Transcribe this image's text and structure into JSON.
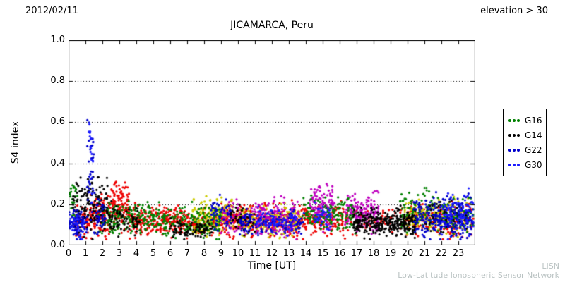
{
  "header": {
    "date": "2012/02/11",
    "elevation": "elevation > 30"
  },
  "watermark": {
    "acronym": "LISN",
    "full_name": "Low-Latitude Ionospheric Sensor Network"
  },
  "chart_data": {
    "type": "scatter",
    "title": "JICAMARCA, Peru",
    "xlabel": "Time [UT]",
    "ylabel": "S4 index",
    "xlim": [
      0,
      24
    ],
    "ylim": [
      0.0,
      1.0
    ],
    "xticks": [
      0,
      1,
      2,
      3,
      4,
      5,
      6,
      7,
      8,
      9,
      10,
      11,
      12,
      13,
      14,
      15,
      16,
      17,
      18,
      19,
      20,
      21,
      22,
      23
    ],
    "xtick_labels": [
      "0",
      "1",
      "2",
      "3",
      "4",
      "5",
      "6",
      "7",
      "8",
      "9",
      "10",
      "11",
      "12",
      "13",
      "14",
      "15",
      "16",
      "17",
      "18",
      "19",
      "20",
      "21",
      "22",
      "23"
    ],
    "yticks": [
      0.0,
      0.2,
      0.4,
      0.6,
      0.8,
      1.0
    ],
    "ytick_labels": [
      "0.0",
      "0.2",
      "0.4",
      "0.6",
      "0.8",
      "1.0"
    ],
    "grid_y": [
      0.2,
      0.4,
      0.6,
      0.8
    ],
    "grid_style": "dotted",
    "legend_position": "right-outside",
    "marker_radius": 1.6,
    "seed": 42,
    "legend": [
      {
        "label": "G16",
        "color": "#008000"
      },
      {
        "label": "G14",
        "color": "#000000"
      },
      {
        "label": "G22",
        "color": "#0000cc"
      },
      {
        "label": "G30",
        "color": "#1a1aff"
      }
    ],
    "band_format": [
      "t_start",
      "t_end",
      "n_points",
      "mean_s4",
      "spread_sd",
      "max_s4"
    ],
    "series": [
      {
        "name": "other-red",
        "color": "#ee0000",
        "bands": [
          [
            0.3,
            1.3,
            70,
            0.12,
            0.035,
            0.3
          ],
          [
            1.3,
            2.5,
            150,
            0.14,
            0.045,
            0.3
          ],
          [
            2.5,
            3.6,
            120,
            0.19,
            0.055,
            0.31
          ],
          [
            3.6,
            6.5,
            220,
            0.12,
            0.035,
            0.26
          ],
          [
            6.5,
            9.0,
            160,
            0.11,
            0.03,
            0.24
          ],
          [
            9.0,
            11.5,
            180,
            0.12,
            0.04,
            0.27
          ],
          [
            11.5,
            14.0,
            180,
            0.12,
            0.04,
            0.26
          ],
          [
            14.0,
            16.5,
            140,
            0.12,
            0.035,
            0.24
          ],
          [
            16.5,
            20.0,
            80,
            0.12,
            0.03,
            0.22
          ],
          [
            20.0,
            23.9,
            200,
            0.13,
            0.04,
            0.26
          ]
        ]
      },
      {
        "name": "other-yellow",
        "color": "#cccc00",
        "bands": [
          [
            7.3,
            9.7,
            180,
            0.14,
            0.04,
            0.24
          ],
          [
            10.0,
            13.7,
            200,
            0.12,
            0.035,
            0.22
          ],
          [
            19.8,
            23.6,
            170,
            0.14,
            0.04,
            0.24
          ]
        ]
      },
      {
        "name": "other-magenta",
        "color": "#bf00bf",
        "bands": [
          [
            9.0,
            10.5,
            60,
            0.13,
            0.04,
            0.27
          ],
          [
            10.8,
            13.6,
            170,
            0.13,
            0.045,
            0.27
          ],
          [
            14.2,
            15.7,
            130,
            0.19,
            0.05,
            0.3
          ],
          [
            16.3,
            18.3,
            170,
            0.16,
            0.045,
            0.27
          ]
        ]
      },
      {
        "name": "G16",
        "color": "#008000",
        "bands": [
          [
            0.05,
            0.6,
            25,
            0.22,
            0.04,
            0.3
          ],
          [
            1.8,
            5.0,
            180,
            0.13,
            0.04,
            0.26
          ],
          [
            5.0,
            9.0,
            180,
            0.12,
            0.035,
            0.24
          ],
          [
            13.8,
            17.0,
            140,
            0.15,
            0.04,
            0.25
          ],
          [
            19.5,
            21.5,
            80,
            0.17,
            0.05,
            0.28
          ],
          [
            21.5,
            23.9,
            80,
            0.14,
            0.04,
            0.24
          ]
        ]
      },
      {
        "name": "G14",
        "color": "#000000",
        "bands": [
          [
            0.2,
            0.9,
            40,
            0.2,
            0.06,
            0.33
          ],
          [
            0.9,
            2.3,
            110,
            0.2,
            0.07,
            0.39
          ],
          [
            2.3,
            4.2,
            70,
            0.12,
            0.04,
            0.24
          ],
          [
            6.0,
            8.5,
            90,
            0.075,
            0.02,
            0.14
          ],
          [
            9.5,
            11.0,
            50,
            0.12,
            0.03,
            0.2
          ],
          [
            16.8,
            20.5,
            320,
            0.11,
            0.03,
            0.2
          ],
          [
            21.0,
            23.5,
            70,
            0.15,
            0.05,
            0.28
          ]
        ]
      },
      {
        "name": "G22",
        "color": "#0000cc",
        "bands": [
          [
            0.0,
            1.1,
            70,
            0.11,
            0.035,
            0.22
          ],
          [
            1.1,
            1.5,
            35,
            0.38,
            0.13,
            0.62
          ],
          [
            1.5,
            2.2,
            40,
            0.15,
            0.05,
            0.28
          ],
          [
            8.4,
            9.6,
            50,
            0.16,
            0.05,
            0.29
          ],
          [
            10.0,
            13.9,
            130,
            0.11,
            0.03,
            0.2
          ],
          [
            20.3,
            23.9,
            240,
            0.13,
            0.045,
            0.27
          ]
        ]
      },
      {
        "name": "G30",
        "color": "#1a1aff",
        "bands": [
          [
            0.0,
            0.9,
            35,
            0.1,
            0.03,
            0.2
          ],
          [
            1.2,
            1.45,
            18,
            0.45,
            0.1,
            0.6
          ],
          [
            11.0,
            13.5,
            70,
            0.12,
            0.03,
            0.2
          ],
          [
            14.5,
            15.5,
            40,
            0.13,
            0.035,
            0.22
          ],
          [
            22.0,
            23.9,
            90,
            0.15,
            0.05,
            0.28
          ]
        ]
      }
    ]
  }
}
